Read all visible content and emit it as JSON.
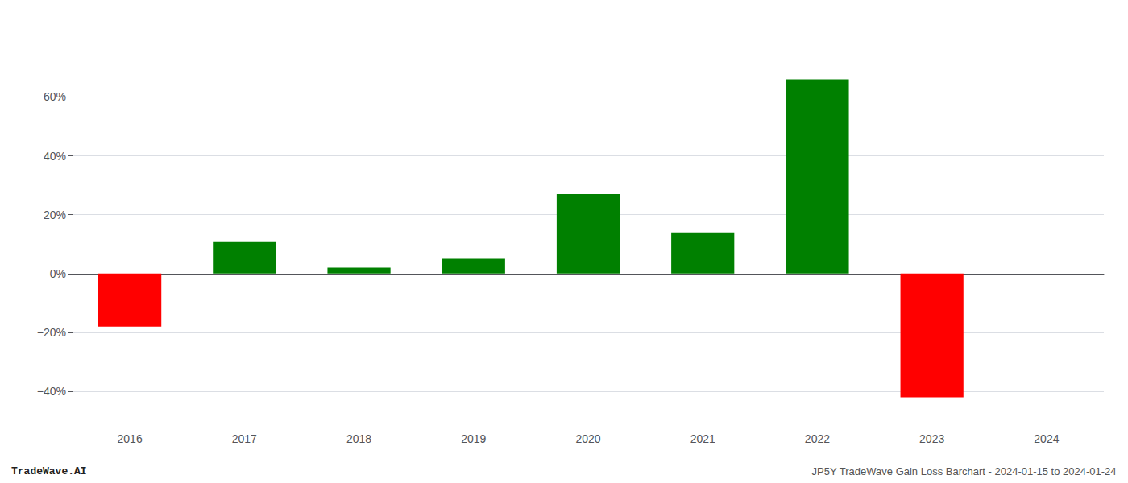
{
  "chart_data": {
    "type": "bar",
    "categories": [
      "2016",
      "2017",
      "2018",
      "2019",
      "2020",
      "2021",
      "2022",
      "2023",
      "2024"
    ],
    "values": [
      -18.0,
      11.0,
      2.0,
      5.0,
      27.0,
      14.0,
      66.0,
      -42.0,
      0.0
    ],
    "colors": [
      "#ff0000",
      "#008000",
      "#008000",
      "#008000",
      "#008000",
      "#008000",
      "#008000",
      "#ff0000",
      "#008000"
    ],
    "ylim": [
      -52,
      82
    ],
    "yticks": [
      {
        "value": -40,
        "label": "−40%"
      },
      {
        "value": -20,
        "label": "−20%"
      },
      {
        "value": 0,
        "label": "0%"
      },
      {
        "value": 20,
        "label": "20%"
      },
      {
        "value": 40,
        "label": "40%"
      },
      {
        "value": 60,
        "label": "60%"
      }
    ],
    "grid": true,
    "annotations": [
      "TradeWave.AI",
      "JP5Y TradeWave Gain Loss Barchart - 2024-01-15 to 2024-01-24"
    ]
  }
}
